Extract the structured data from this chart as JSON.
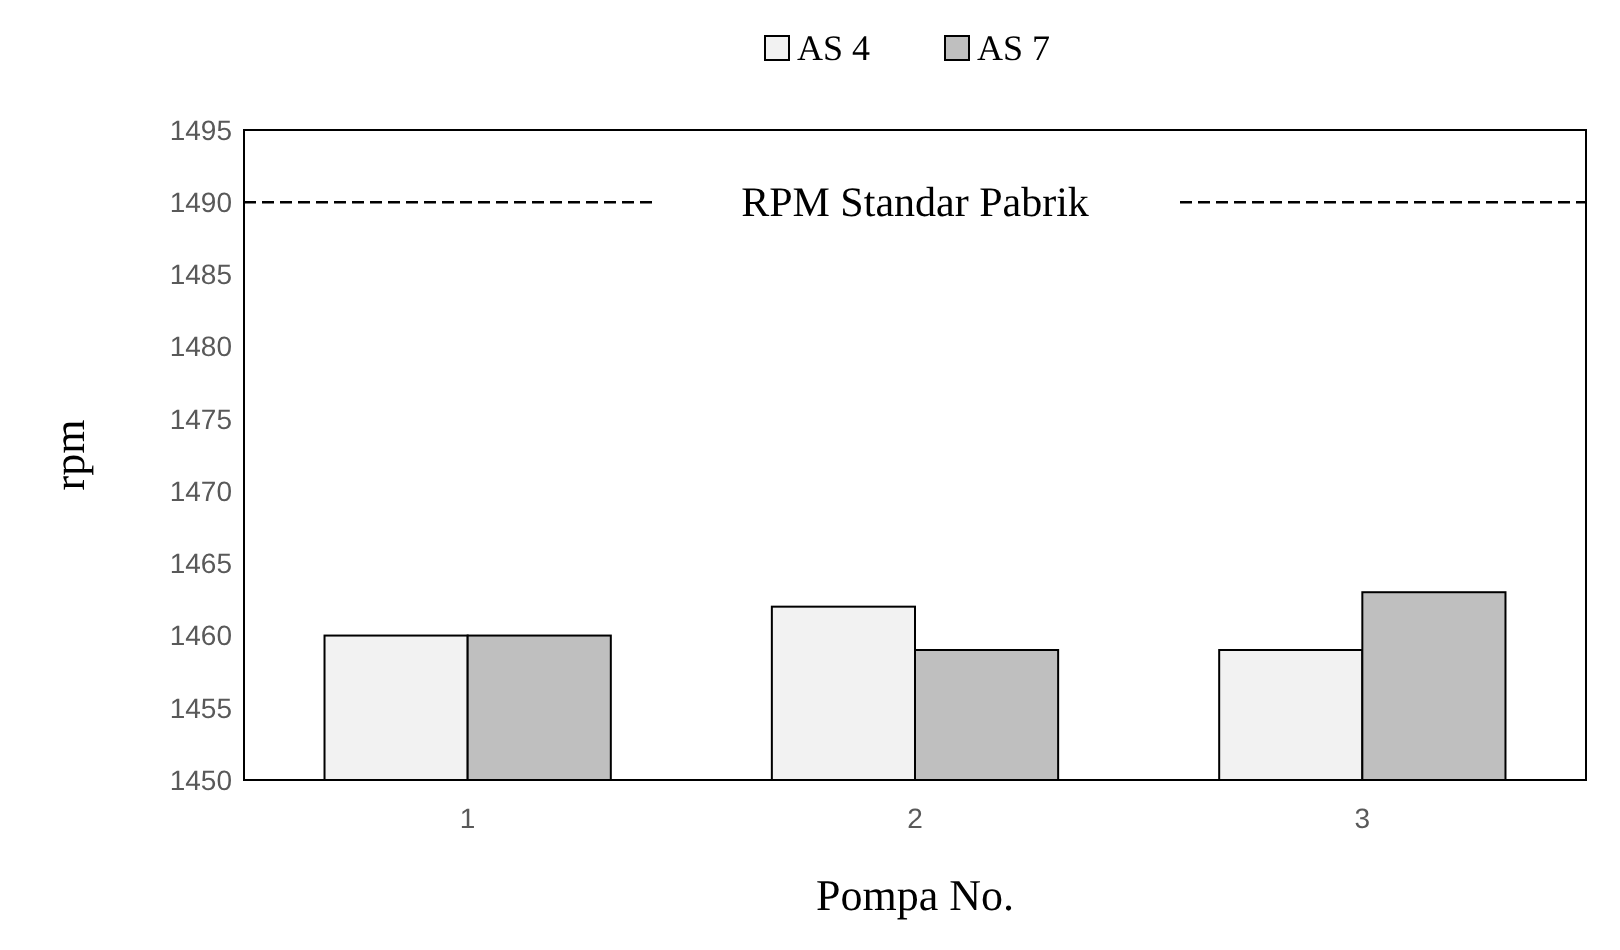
{
  "chart_data": {
    "type": "bar",
    "xlabel": "Pompa No.",
    "ylabel": "rpm",
    "categories": [
      "1",
      "2",
      "3"
    ],
    "series": [
      {
        "name": "AS 4",
        "color": "#f2f2f2",
        "values": [
          1460,
          1462,
          1459
        ]
      },
      {
        "name": "AS 7",
        "color": "#bfbfbf",
        "values": [
          1460,
          1459,
          1463
        ]
      }
    ],
    "ylim": [
      1450,
      1495
    ],
    "yticks": [
      1450,
      1455,
      1460,
      1465,
      1470,
      1475,
      1480,
      1485,
      1490,
      1495
    ],
    "ref_lines": [
      {
        "axis": "y",
        "value": 1490,
        "label": "RPM Standar Pabrik",
        "color": "#000000",
        "line_style": "dashed"
      }
    ],
    "grid": false,
    "legend": "top"
  }
}
